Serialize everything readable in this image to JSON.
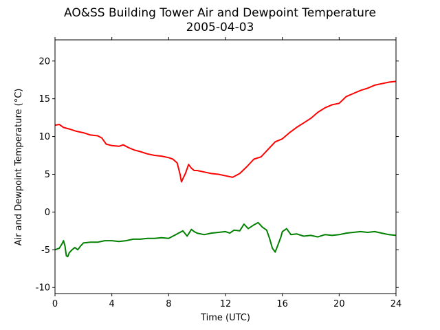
{
  "chart_data": {
    "type": "line",
    "title": "AO&SS Building Tower Air and Dewpoint Temperature",
    "subtitle": "2005-04-03",
    "xlabel": "Time (UTC)",
    "ylabel": "Air and Dewpoint Temperature (°C)",
    "xlim": [
      0,
      24
    ],
    "ylim": [
      -10.8,
      22.8
    ],
    "xticks": [
      0,
      4,
      8,
      12,
      16,
      20,
      24
    ],
    "yticks": [
      -10,
      -5,
      0,
      5,
      10,
      15,
      20
    ],
    "grid": false,
    "series": [
      {
        "color": "#ff0000",
        "x": [
          0,
          0.3,
          0.6,
          1.0,
          1.5,
          2.0,
          2.5,
          3.0,
          3.3,
          3.6,
          4.0,
          4.5,
          4.8,
          5.2,
          5.6,
          6.0,
          6.5,
          7.0,
          7.5,
          8.0,
          8.3,
          8.6,
          8.8,
          8.9,
          9.0,
          9.2,
          9.4,
          9.6,
          9.8,
          10.0,
          10.5,
          11.0,
          11.5,
          12.0,
          12.5,
          13.0,
          13.5,
          14.0,
          14.5,
          15.0,
          15.5,
          16.0,
          16.5,
          17.0,
          17.5,
          18.0,
          18.5,
          19.0,
          19.5,
          20.0,
          20.5,
          21.0,
          21.5,
          22.0,
          22.5,
          23.0,
          23.5,
          24.0
        ],
        "y": [
          11.5,
          11.6,
          11.2,
          11.0,
          10.7,
          10.5,
          10.2,
          10.1,
          9.8,
          9.0,
          8.8,
          8.7,
          8.9,
          8.5,
          8.2,
          8.0,
          7.7,
          7.5,
          7.4,
          7.2,
          7.0,
          6.5,
          5.0,
          4.0,
          4.4,
          5.2,
          6.3,
          5.8,
          5.5,
          5.5,
          5.3,
          5.1,
          5.0,
          4.8,
          4.6,
          5.1,
          6.0,
          7.0,
          7.3,
          8.3,
          9.3,
          9.7,
          10.5,
          11.2,
          11.8,
          12.4,
          13.2,
          13.8,
          14.2,
          14.4,
          15.3,
          15.7,
          16.1,
          16.4,
          16.8,
          17.0,
          17.2,
          17.3
        ]
      },
      {
        "color": "#008000",
        "x": [
          0,
          0.3,
          0.5,
          0.6,
          0.7,
          0.8,
          0.9,
          1.0,
          1.2,
          1.4,
          1.6,
          1.8,
          2.0,
          2.5,
          3.0,
          3.5,
          4.0,
          4.5,
          5.0,
          5.5,
          6.0,
          6.5,
          7.0,
          7.5,
          8.0,
          8.5,
          9.0,
          9.3,
          9.6,
          9.8,
          10.0,
          10.5,
          11.0,
          11.5,
          12.0,
          12.3,
          12.6,
          13.0,
          13.3,
          13.6,
          14.0,
          14.3,
          14.6,
          14.9,
          15.1,
          15.3,
          15.5,
          15.7,
          15.9,
          16.0,
          16.3,
          16.6,
          17.0,
          17.5,
          18.0,
          18.5,
          19.0,
          19.5,
          20.0,
          20.5,
          21.0,
          21.5,
          22.0,
          22.5,
          23.0,
          23.5,
          24.0
        ],
        "y": [
          -5.0,
          -4.8,
          -4.2,
          -3.8,
          -4.5,
          -5.8,
          -5.9,
          -5.4,
          -5.0,
          -4.7,
          -5.0,
          -4.5,
          -4.1,
          -4.0,
          -4.0,
          -3.8,
          -3.8,
          -3.9,
          -3.8,
          -3.6,
          -3.6,
          -3.5,
          -3.5,
          -3.4,
          -3.5,
          -3.0,
          -2.5,
          -3.2,
          -2.3,
          -2.6,
          -2.8,
          -3.0,
          -2.8,
          -2.7,
          -2.6,
          -2.8,
          -2.4,
          -2.5,
          -1.6,
          -2.2,
          -1.7,
          -1.4,
          -2.0,
          -2.4,
          -3.5,
          -4.8,
          -5.3,
          -4.3,
          -3.3,
          -2.6,
          -2.2,
          -3.0,
          -2.9,
          -3.2,
          -3.1,
          -3.3,
          -3.0,
          -3.1,
          -3.0,
          -2.8,
          -2.7,
          -2.6,
          -2.7,
          -2.6,
          -2.8,
          -3.0,
          -3.1
        ]
      }
    ]
  }
}
